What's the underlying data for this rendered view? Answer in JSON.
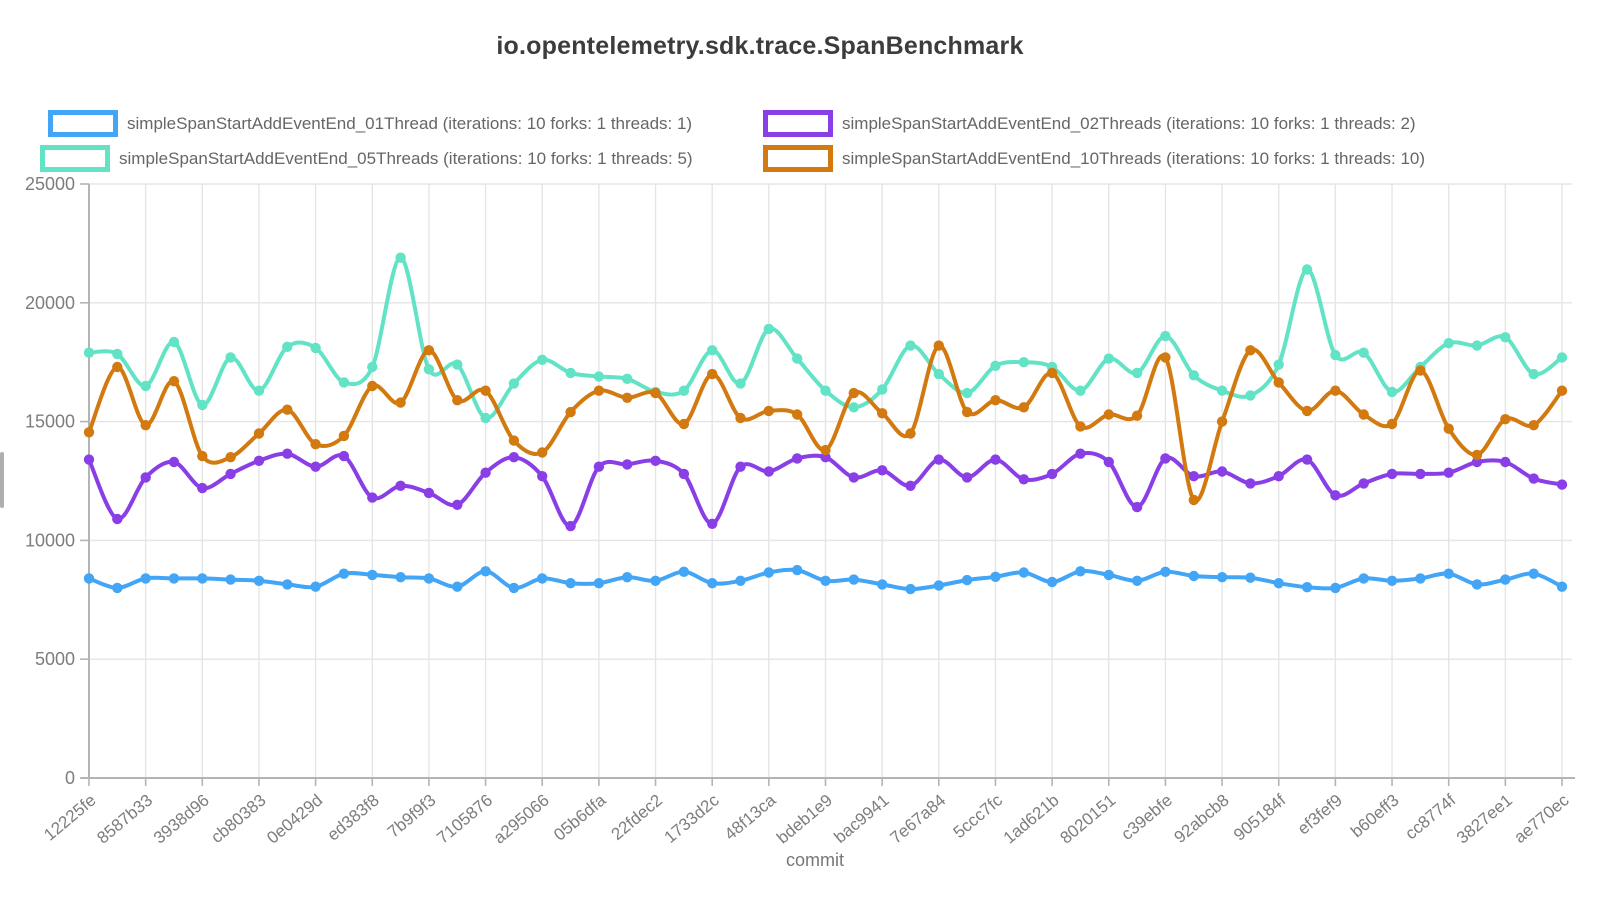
{
  "title": "io.opentelemetry.sdk.trace.SpanBenchmark",
  "legend": [
    {
      "label": "simpleSpanStartAddEventEnd_01Thread (iterations: 10 forks: 1 threads: 1)",
      "color": "#42a5f5"
    },
    {
      "label": "simpleSpanStartAddEventEnd_02Threads (iterations: 10 forks: 1 threads: 2)",
      "color": "#8a3ee6"
    },
    {
      "label": "simpleSpanStartAddEventEnd_05Threads (iterations: 10 forks: 1 threads: 5)",
      "color": "#62e3c5"
    },
    {
      "label": "simpleSpanStartAddEventEnd_10Threads (iterations: 10 forks: 1 threads: 10)",
      "color": "#d2790f"
    }
  ],
  "chart_data": {
    "type": "line",
    "title": "io.opentelemetry.sdk.trace.SpanBenchmark",
    "xlabel": "commit",
    "ylabel": "",
    "ylim": [
      0,
      25000
    ],
    "yticks": [
      0,
      5000,
      10000,
      15000,
      20000,
      25000
    ],
    "grid": true,
    "legend_position": "top",
    "marker": "circle",
    "points_per_series": 53,
    "label_every_nth_point": 2,
    "categories": [
      "12225fe",
      "8587b33",
      "3938d96",
      "cb80383",
      "0e0429d",
      "ed383f8",
      "7b9f9f3",
      "7105876",
      "a295066",
      "05b6dfa",
      "22fdec2",
      "1733d2c",
      "48f13ca",
      "bdeb1e9",
      "bac9941",
      "7e67a84",
      "5ccc7fc",
      "1ad621b",
      "8020151",
      "c39ebfe",
      "92abcb8",
      "905184f",
      "ef3fef9",
      "b60eff3",
      "cc8774f",
      "3827ee1",
      "ae770ec"
    ],
    "series": [
      {
        "name": "simpleSpanStartAddEventEnd_01Thread (iterations: 10 forks: 1 threads: 1)",
        "color": "#42a5f5",
        "values": [
          8400,
          8000,
          8400,
          8400,
          8400,
          8350,
          8300,
          8150,
          8050,
          8600,
          8550,
          8450,
          8400,
          8050,
          8700,
          8000,
          8400,
          8200,
          8200,
          8450,
          8300,
          8680,
          8200,
          8300,
          8650,
          8750,
          8300,
          8350,
          8150,
          7950,
          8100,
          8330,
          8470,
          8650,
          8250,
          8700,
          8550,
          8300,
          8680,
          8500,
          8450,
          8430,
          8200,
          8030,
          8000,
          8400,
          8300,
          8400,
          8600,
          8150,
          8350,
          8600,
          8050
        ]
      },
      {
        "name": "simpleSpanStartAddEventEnd_02Threads (iterations: 10 forks: 1 threads: 2)",
        "color": "#8a3ee6",
        "values": [
          13400,
          10900,
          12650,
          13300,
          12200,
          12800,
          13350,
          13650,
          13100,
          13550,
          11800,
          12300,
          12000,
          11500,
          12850,
          13500,
          12700,
          10600,
          13100,
          13200,
          13350,
          12800,
          10700,
          13100,
          12900,
          13450,
          13500,
          12650,
          12950,
          12300,
          13400,
          12650,
          13400,
          12570,
          12800,
          13650,
          13300,
          11400,
          13450,
          12700,
          12900,
          12400,
          12700,
          13400,
          11900,
          12400,
          12800,
          12800,
          12850,
          13300,
          13300,
          12600,
          12350
        ]
      },
      {
        "name": "simpleSpanStartAddEventEnd_05Threads (iterations: 10 forks: 1 threads: 5)",
        "color": "#62e3c5",
        "values": [
          17900,
          17850,
          16500,
          18350,
          15700,
          17700,
          16300,
          18150,
          18100,
          16650,
          17300,
          21900,
          17200,
          17400,
          15150,
          16600,
          17600,
          17050,
          16900,
          16800,
          16250,
          16300,
          18000,
          16600,
          18900,
          17650,
          16300,
          15600,
          16350,
          18200,
          17000,
          16200,
          17350,
          17500,
          17300,
          16300,
          17650,
          17050,
          18600,
          16950,
          16300,
          16100,
          17400,
          21400,
          17800,
          17900,
          16250,
          17300,
          18300,
          18200,
          18550,
          17000,
          17700
        ]
      },
      {
        "name": "simpleSpanStartAddEventEnd_10Threads (iterations: 10 forks: 1 threads: 10)",
        "color": "#d2790f",
        "values": [
          14550,
          17300,
          14850,
          16700,
          13550,
          13500,
          14500,
          15500,
          14050,
          14400,
          16500,
          15800,
          18000,
          15900,
          16300,
          14200,
          13700,
          15400,
          16300,
          16000,
          16200,
          14900,
          17000,
          15150,
          15450,
          15300,
          13800,
          16200,
          15350,
          14500,
          18200,
          15400,
          15900,
          15600,
          17050,
          14800,
          15300,
          15250,
          17700,
          11700,
          15000,
          18000,
          16650,
          15450,
          16300,
          15300,
          14900,
          17150,
          14700,
          13600,
          15100,
          14850,
          16300
        ]
      }
    ]
  },
  "style": {
    "grid_color": "#e5e5e5",
    "axis_color": "#b4b4b4",
    "tick_text_color": "#7d7d7d",
    "title_color": "#3c3c3c",
    "legend_text_color": "#666666"
  }
}
